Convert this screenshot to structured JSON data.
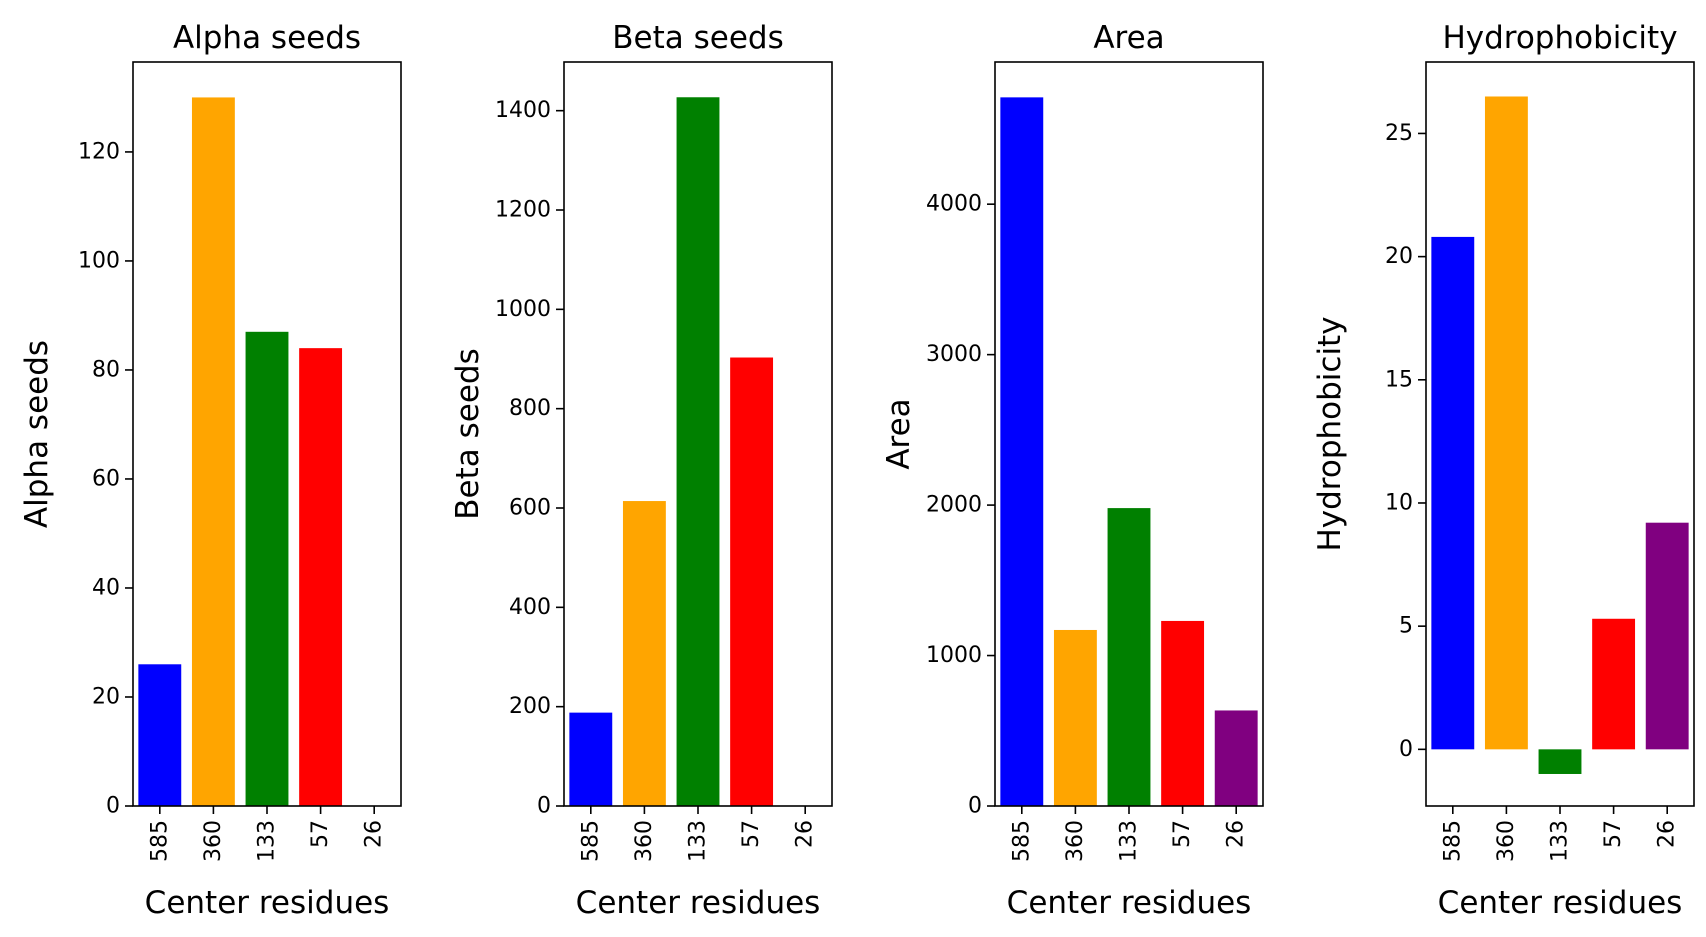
{
  "chart_data": [
    {
      "type": "bar",
      "title": "Alpha seeds",
      "xlabel": "Center residues",
      "ylabel": "Alpha seeds",
      "categories": [
        "585",
        "360",
        "133",
        "57",
        "26"
      ],
      "values": [
        26,
        130,
        87,
        84,
        0
      ],
      "colors": [
        "#0000ff",
        "#ffa500",
        "#008000",
        "#ff0000",
        "#800080"
      ],
      "ylim": [
        0,
        136.5
      ],
      "yticks": [
        0,
        20,
        40,
        60,
        80,
        100,
        120
      ],
      "grid": false
    },
    {
      "type": "bar",
      "title": "Beta seeds",
      "xlabel": "Center residues",
      "ylabel": "Beta seeds",
      "categories": [
        "585",
        "360",
        "133",
        "57",
        "26"
      ],
      "values": [
        188,
        614,
        1427,
        903,
        0
      ],
      "colors": [
        "#0000ff",
        "#ffa500",
        "#008000",
        "#ff0000",
        "#800080"
      ],
      "ylim": [
        0,
        1498
      ],
      "yticks": [
        0,
        200,
        400,
        600,
        800,
        1000,
        1200,
        1400
      ],
      "grid": false
    },
    {
      "type": "bar",
      "title": "Area",
      "xlabel": "Center residues",
      "ylabel": "Area",
      "categories": [
        "585",
        "360",
        "133",
        "57",
        "26"
      ],
      "values": [
        4710,
        1170,
        1980,
        1230,
        635
      ],
      "colors": [
        "#0000ff",
        "#ffa500",
        "#008000",
        "#ff0000",
        "#800080"
      ],
      "ylim": [
        0,
        4945
      ],
      "yticks": [
        0,
        1000,
        2000,
        3000,
        4000
      ],
      "grid": false
    },
    {
      "type": "bar",
      "title": "Hydrophobicity",
      "xlabel": "Center residues",
      "ylabel": "Hydrophobicity",
      "categories": [
        "585",
        "360",
        "133",
        "57",
        "26"
      ],
      "values": [
        20.8,
        26.5,
        -1.0,
        5.3,
        9.2
      ],
      "colors": [
        "#0000ff",
        "#ffa500",
        "#008000",
        "#ff0000",
        "#800080"
      ],
      "ylim": [
        -2.3,
        27.9
      ],
      "yticks": [
        0,
        5,
        10,
        15,
        20,
        25
      ],
      "grid": false
    }
  ]
}
